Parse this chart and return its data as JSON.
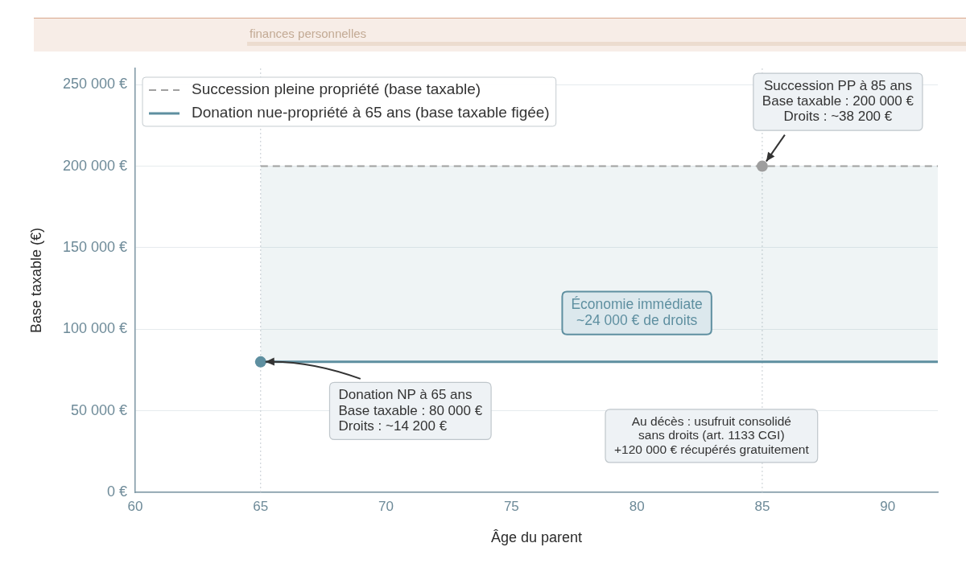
{
  "chart_data": {
    "type": "line",
    "subtitle": "finances personnelles",
    "xlabel": "Âge du parent",
    "ylabel": "Base taxable (€)",
    "xlim": [
      60,
      92
    ],
    "xticks": [
      60,
      65,
      70,
      75,
      80,
      85,
      90
    ],
    "ylim": [
      0,
      260000
    ],
    "yticks": [
      {
        "value": 0,
        "label": "0 €"
      },
      {
        "value": 50000,
        "label": "50 000 €"
      },
      {
        "value": 100000,
        "label": "100 000 €"
      },
      {
        "value": 150000,
        "label": "150 000 €"
      },
      {
        "value": 200000,
        "label": "200 000 €"
      },
      {
        "value": 250000,
        "label": "250 000 €"
      }
    ],
    "grid": "y",
    "legend": "top left",
    "series": [
      {
        "name": "Succession pleine propriété (base taxable)",
        "type": "line",
        "color": "#a0a0a0",
        "line_style": "dashed",
        "x": [
          65,
          92
        ],
        "values": [
          200000,
          200000
        ]
      },
      {
        "name": "Donation nue-propriété à 65 ans (base taxable figée)",
        "type": "line",
        "color": "#5e8fa0",
        "line_style": "solid",
        "x": [
          65,
          92
        ],
        "values": [
          80000,
          80000
        ],
        "lower": [
          80000,
          80000
        ],
        "upper": [
          200000,
          200000
        ]
      },
      {
        "type": "scatter",
        "color": "#5e8fa0",
        "marker": "circle",
        "x": [
          65
        ],
        "values": [
          80000
        ]
      },
      {
        "type": "scatter",
        "color": "#9e9e9e",
        "marker": "circle",
        "x": [
          85
        ],
        "values": [
          200000
        ]
      }
    ],
    "ref_lines": [
      {
        "axis": "x",
        "value": 65,
        "color": "#c5ccd1",
        "line_style": "dotted"
      },
      {
        "axis": "x",
        "value": 85,
        "color": "#c5ccd1",
        "line_style": "dotted"
      }
    ],
    "annotations": [
      {
        "text": "Succession PP à 85 ans\nBase taxable : 200 000 €\nDroits : ~38 200 €",
        "x": 85,
        "y": 200000
      },
      {
        "text": "Donation NP à 65 ans\nBase taxable : 80 000 €\nDroits : ~14 200 €",
        "x": 65,
        "y": 80000
      },
      "Économie immédiate\n~24 000 € de droits",
      "Au décès : usufruit consolidé\nsans droits (art. 1133 CGI)\n+120 000 € récupérés gratuitement"
    ]
  }
}
